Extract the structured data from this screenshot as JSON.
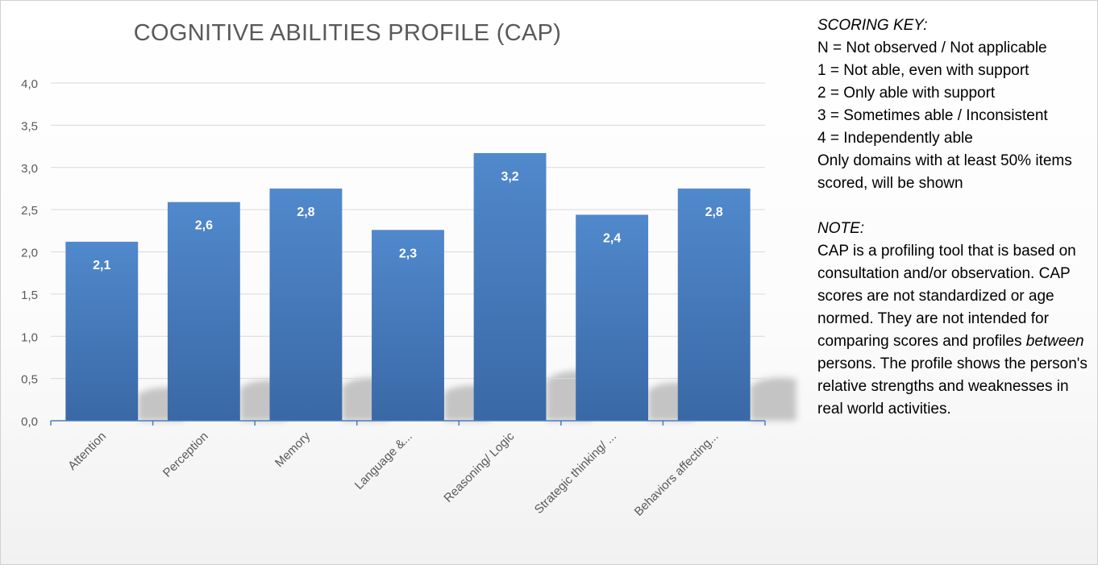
{
  "chart_data": {
    "type": "bar",
    "title": "COGNITIVE ABILITIES PROFILE (CAP)",
    "categories": [
      "Attention",
      "Perception",
      "Memory",
      "Language &...",
      "Reasoning/ Logic",
      "Strategic thinking/ ...",
      "Behaviors affecting..."
    ],
    "values": [
      2.12,
      2.59,
      2.75,
      2.26,
      3.17,
      2.44,
      2.75
    ],
    "data_labels": [
      "2,1",
      "2,6",
      "2,8",
      "2,3",
      "3,2",
      "2,4",
      "2,8"
    ],
    "ylim": [
      0,
      4
    ],
    "yticks": [
      "0,0",
      "0,5",
      "1,0",
      "1,5",
      "2,0",
      "2,5",
      "3,0",
      "3,5",
      "4,0"
    ],
    "grid": true,
    "bar_color": "#4a7ebb",
    "xlabel": "",
    "ylabel": ""
  },
  "scoring_key": {
    "heading": "SCORING KEY:",
    "lines": [
      "N = Not observed / Not applicable",
      "1 = Not able, even with support",
      "2 = Only able with support",
      "3 = Sometimes able / Inconsistent",
      "4 = Independently able",
      "Only domains with at least 50% items scored, will be shown"
    ]
  },
  "note": {
    "heading": "NOTE:",
    "text_before": "CAP is a profiling tool that is based on consultation and/or observation. CAP scores are not standardized or age normed. They are not intended for comparing scores and profiles",
    "emphasis": "between",
    "text_after": " persons. The profile shows the person's relative strengths and weaknesses in real world activities."
  }
}
